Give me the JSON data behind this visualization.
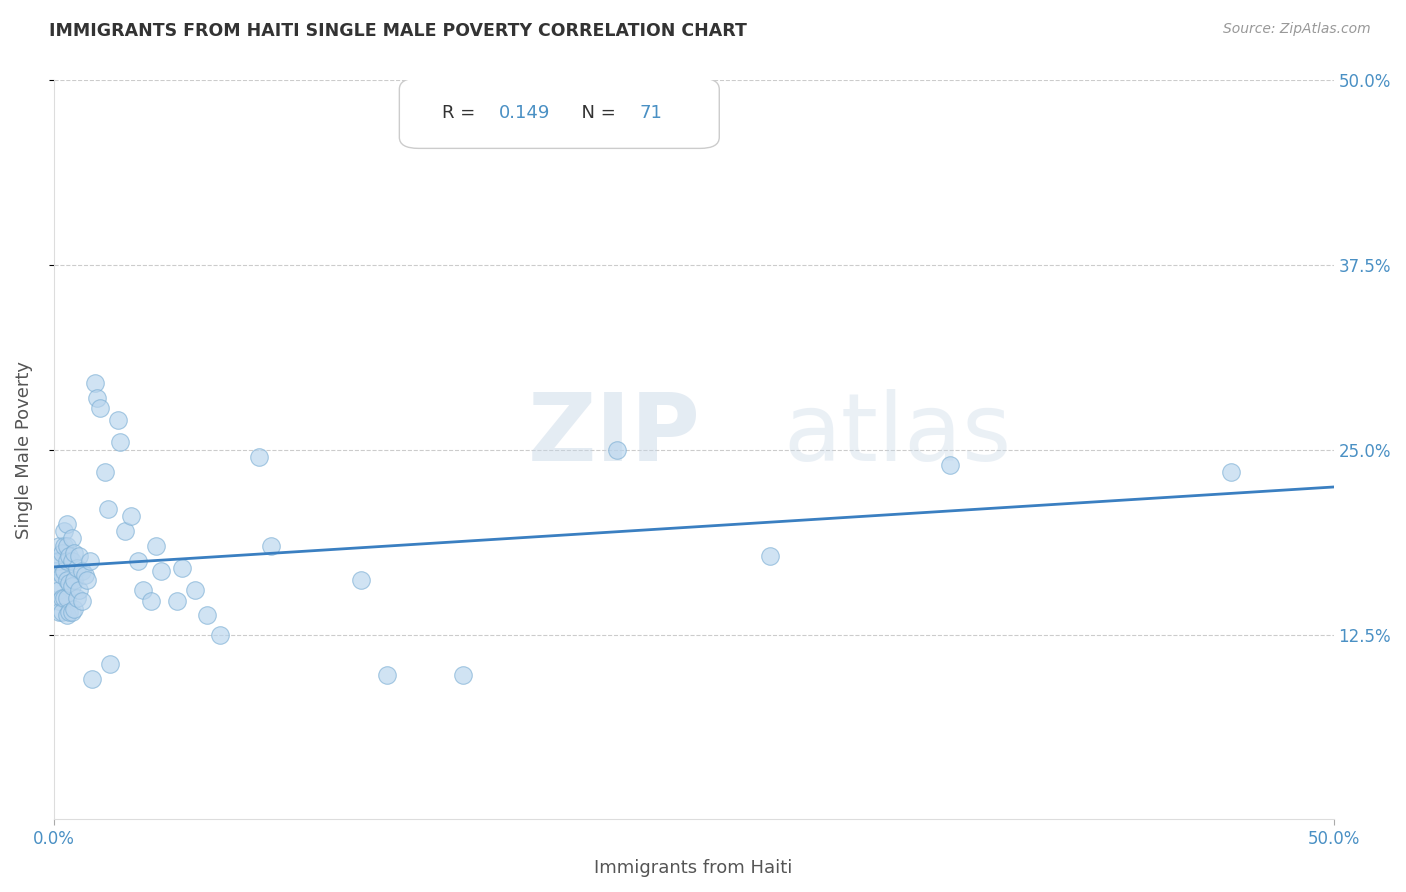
{
  "title": "IMMIGRANTS FROM HAITI SINGLE MALE POVERTY CORRELATION CHART",
  "source": "Source: ZipAtlas.com",
  "xlabel": "Immigrants from Haiti",
  "ylabel": "Single Male Poverty",
  "R": 0.149,
  "N": 71,
  "xlim": [
    0,
    0.5
  ],
  "ylim": [
    0,
    0.5
  ],
  "xtick_vals": [
    0.0,
    0.5
  ],
  "xtick_labels": [
    "0.0%",
    "50.0%"
  ],
  "ytick_labels": [
    "12.5%",
    "25.0%",
    "37.5%",
    "50.0%"
  ],
  "ytick_vals": [
    0.125,
    0.25,
    0.375,
    0.5
  ],
  "watermark_zip": "ZIP",
  "watermark_atlas": "atlas",
  "scatter_color": "#b8d4ed",
  "scatter_alpha": 0.65,
  "scatter_edgecolor": "#7aaed4",
  "scatter_edgewidth": 0.8,
  "line_color": "#3a7fc1",
  "title_color": "#333333",
  "axis_label_color": "#555555",
  "tick_label_color": "#4a90c4",
  "source_color": "#999999",
  "R_label_color": "#333333",
  "RN_value_color": "#4a90c4",
  "points_x": [
    0.001,
    0.001,
    0.001,
    0.002,
    0.002,
    0.002,
    0.002,
    0.002,
    0.003,
    0.003,
    0.003,
    0.003,
    0.004,
    0.004,
    0.004,
    0.004,
    0.005,
    0.005,
    0.005,
    0.005,
    0.005,
    0.005,
    0.006,
    0.006,
    0.006,
    0.007,
    0.007,
    0.007,
    0.007,
    0.008,
    0.008,
    0.008,
    0.009,
    0.009,
    0.01,
    0.01,
    0.011,
    0.011,
    0.012,
    0.013,
    0.014,
    0.015,
    0.016,
    0.017,
    0.018,
    0.02,
    0.021,
    0.022,
    0.025,
    0.026,
    0.028,
    0.03,
    0.033,
    0.035,
    0.038,
    0.04,
    0.042,
    0.048,
    0.05,
    0.055,
    0.06,
    0.065,
    0.08,
    0.085,
    0.12,
    0.13,
    0.16,
    0.22,
    0.28,
    0.35,
    0.46
  ],
  "points_y": [
    0.175,
    0.168,
    0.16,
    0.185,
    0.175,
    0.155,
    0.148,
    0.14,
    0.18,
    0.165,
    0.15,
    0.14,
    0.195,
    0.185,
    0.168,
    0.15,
    0.2,
    0.185,
    0.175,
    0.162,
    0.15,
    0.138,
    0.178,
    0.16,
    0.14,
    0.19,
    0.175,
    0.158,
    0.14,
    0.18,
    0.162,
    0.142,
    0.17,
    0.15,
    0.178,
    0.155,
    0.168,
    0.148,
    0.165,
    0.162,
    0.175,
    0.095,
    0.295,
    0.285,
    0.278,
    0.235,
    0.21,
    0.105,
    0.27,
    0.255,
    0.195,
    0.205,
    0.175,
    0.155,
    0.148,
    0.185,
    0.168,
    0.148,
    0.17,
    0.155,
    0.138,
    0.125,
    0.245,
    0.185,
    0.162,
    0.098,
    0.098,
    0.25,
    0.178,
    0.24,
    0.235
  ]
}
